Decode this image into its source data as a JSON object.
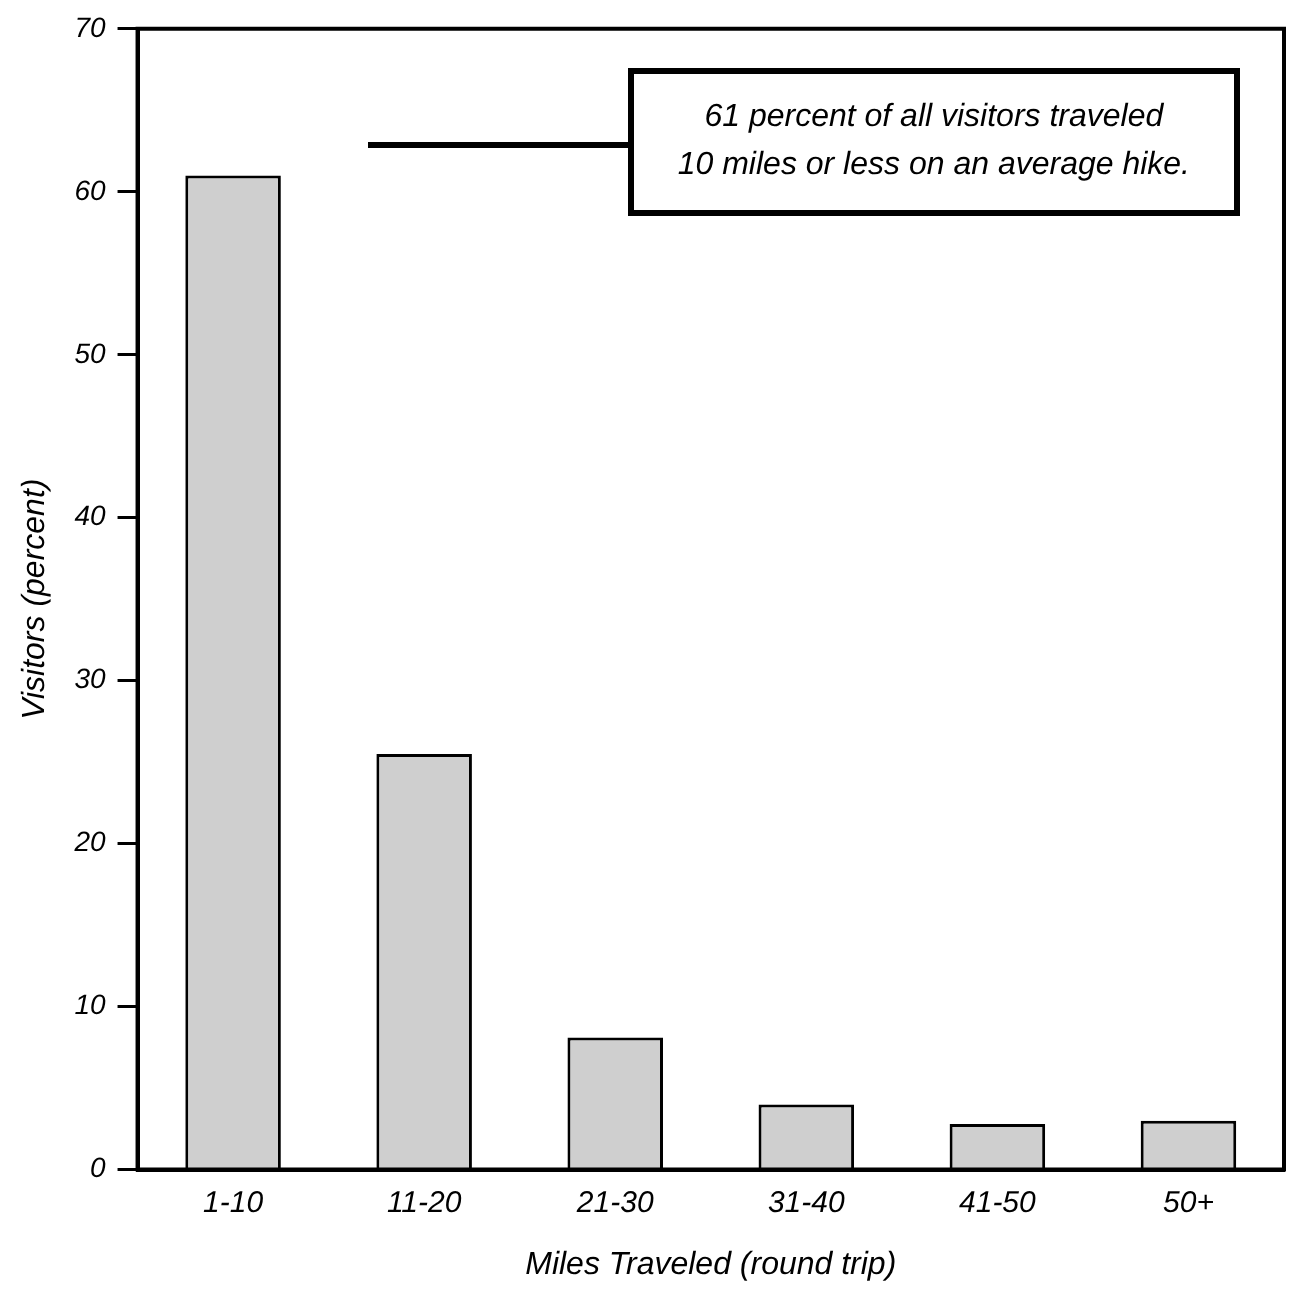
{
  "chart_data": {
    "type": "bar",
    "xlabel": "Miles Traveled (round trip)",
    "ylabel": "Visitors (percent)",
    "categories": [
      "1-10",
      "11-20",
      "21-30",
      "31-40",
      "41-50",
      "50+"
    ],
    "values": [
      61,
      25.5,
      8.1,
      4,
      2.8,
      3
    ],
    "color": "#cfcfcf",
    "ylim": [
      0,
      70
    ],
    "yticks": [
      0,
      10,
      20,
      30,
      40,
      50,
      60,
      70
    ],
    "grid": false,
    "legend": false,
    "annotations": [
      "61 percent of all visitors traveled\n10 miles or less on an average hike."
    ]
  }
}
